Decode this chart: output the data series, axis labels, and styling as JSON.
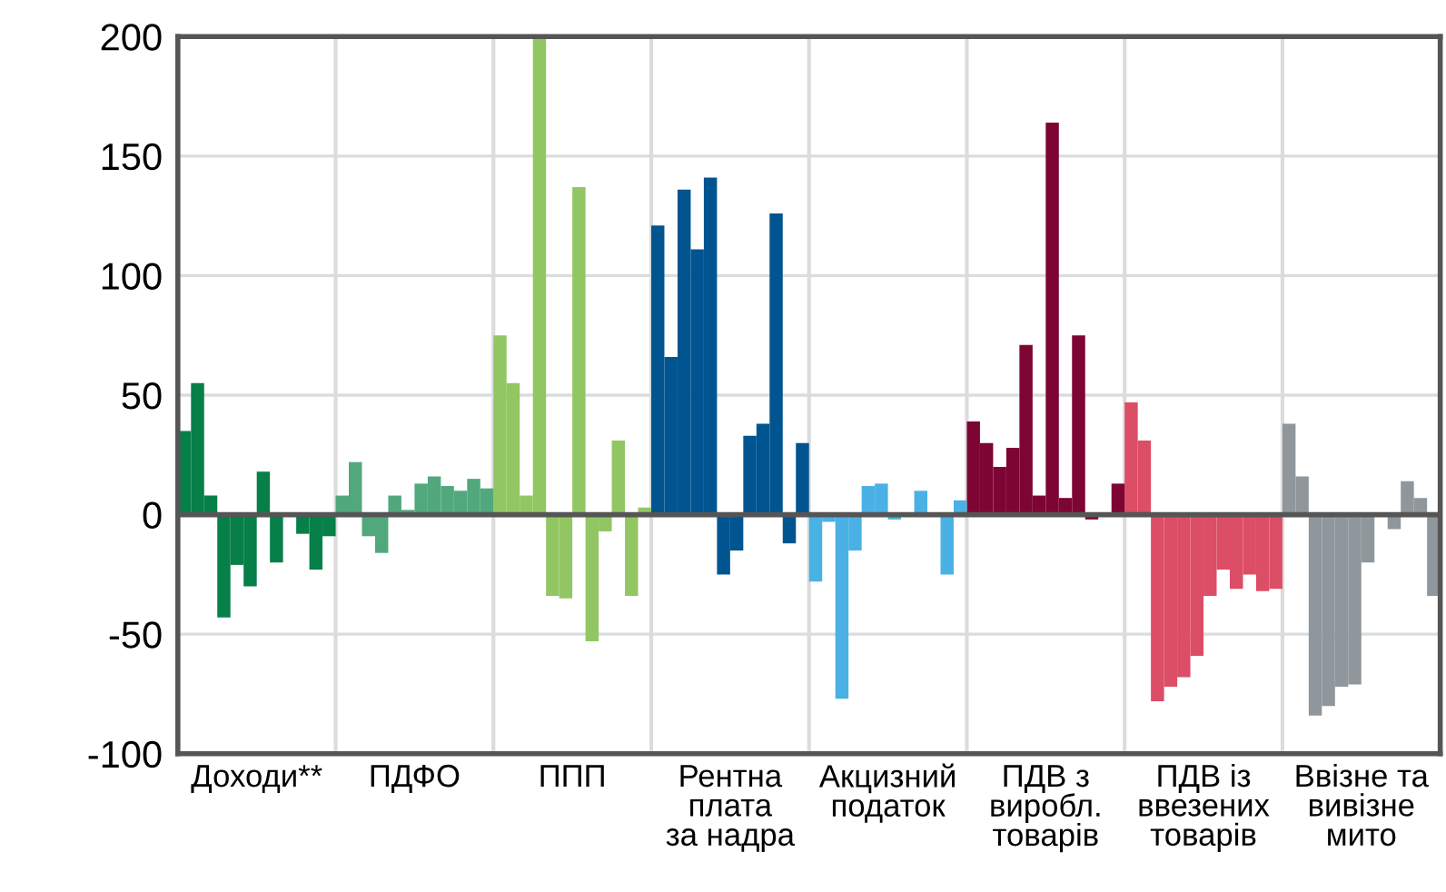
{
  "chart_data": {
    "type": "bar",
    "categories": [
      "Доходи**",
      "ПДФО",
      "ППП",
      "Рентна\nплата\nза надра",
      "Акцизний\nподаток",
      "ПДВ з\nвиробл.\nтоварів",
      "ПДВ із\nввезених\nтоварів",
      "Ввізне та\nвивізне\nмито"
    ],
    "series": [
      {
        "colors": [
          "#077f48",
          "#52a87d",
          "#92c663",
          "#00548f",
          "#4ab1e4",
          "#7d0533",
          "#dc4d66",
          "#8f979c"
        ],
        "values": [
          35,
          8,
          75,
          121,
          -28,
          39,
          47,
          38
        ]
      },
      {
        "colors": [
          "#077f48",
          "#52a87d",
          "#92c663",
          "#00548f",
          "#4ab1e4",
          "#7d0533",
          "#dc4d66",
          "#8f979c"
        ],
        "values": [
          55,
          22,
          55,
          66,
          -3,
          30,
          31,
          16
        ]
      },
      {
        "colors": [
          "#077f48",
          "#52a87d",
          "#92c663",
          "#00548f",
          "#4ab1e4",
          "#7d0533",
          "#dc4d66",
          "#8f979c"
        ],
        "values": [
          8,
          -9,
          8,
          136,
          -77,
          20,
          -78,
          -84
        ]
      },
      {
        "colors": [
          "#077f48",
          "#52a87d",
          "#92c663",
          "#00548f",
          "#4ab1e4",
          "#7d0533",
          "#dc4d66",
          "#8f979c"
        ],
        "values": [
          -43,
          -16,
          200,
          111,
          -15,
          28,
          -72,
          -80
        ]
      },
      {
        "colors": [
          "#077f48",
          "#52a87d",
          "#92c663",
          "#00548f",
          "#4ab1e4",
          "#7d0533",
          "#dc4d66",
          "#8f979c"
        ],
        "values": [
          -21,
          8,
          -34,
          141,
          12,
          71,
          -68,
          -72
        ]
      },
      {
        "colors": [
          "#077f48",
          "#52a87d",
          "#92c663",
          "#00548f",
          "#4ab1e4",
          "#7d0533",
          "#dc4d66",
          "#8f979c"
        ],
        "values": [
          -30,
          2,
          -35,
          -25,
          13,
          8,
          -59,
          -71
        ]
      },
      {
        "colors": [
          "#077f48",
          "#52a87d",
          "#92c663",
          "#00548f",
          "#4ab1e4",
          "#7d0533",
          "#dc4d66",
          "#8f979c"
        ],
        "values": [
          18,
          13,
          137,
          -15,
          -2,
          164,
          -34,
          -20
        ]
      },
      {
        "colors": [
          "#077f48",
          "#52a87d",
          "#92c663",
          "#00548f",
          "#4ab1e4",
          "#7d0533",
          "#dc4d66",
          "#8f979c"
        ],
        "values": [
          -20,
          16,
          -53,
          33,
          0,
          7,
          -23,
          0
        ]
      },
      {
        "colors": [
          "#077f48",
          "#52a87d",
          "#92c663",
          "#00548f",
          "#4ab1e4",
          "#7d0533",
          "#dc4d66",
          "#8f979c"
        ],
        "values": [
          0,
          12,
          -7,
          38,
          10,
          75,
          -31,
          -6
        ]
      },
      {
        "colors": [
          "#077f48",
          "#52a87d",
          "#92c663",
          "#00548f",
          "#4ab1e4",
          "#7d0533",
          "#dc4d66",
          "#8f979c"
        ],
        "values": [
          -8,
          10,
          31,
          126,
          0,
          -2,
          -25,
          14
        ]
      },
      {
        "colors": [
          "#077f48",
          "#52a87d",
          "#92c663",
          "#00548f",
          "#4ab1e4",
          "#7d0533",
          "#dc4d66",
          "#8f979c"
        ],
        "values": [
          -23,
          15,
          -34,
          -12,
          -25,
          0,
          -32,
          7
        ]
      },
      {
        "colors": [
          "#077f48",
          "#52a87d",
          "#92c663",
          "#00548f",
          "#4ab1e4",
          "#7d0533",
          "#dc4d66",
          "#8f979c"
        ],
        "values": [
          -9,
          11,
          3,
          30,
          6,
          13,
          -31,
          -34
        ]
      }
    ],
    "ylim": [
      -100,
      200
    ],
    "yticks": [
      -100,
      -50,
      0,
      50,
      100,
      150,
      200
    ],
    "grid": true,
    "legend": false
  }
}
